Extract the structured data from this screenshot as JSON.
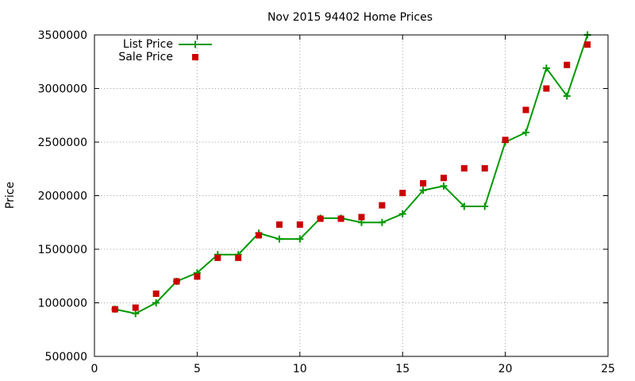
{
  "chart_data": {
    "type": "line",
    "title": "Nov 2015 94402 Home Prices",
    "xlabel": "",
    "ylabel": "Price",
    "xlim": [
      0,
      25
    ],
    "ylim": [
      500000,
      3500000
    ],
    "x_ticks": [
      0,
      5,
      10,
      15,
      20,
      25
    ],
    "y_ticks": [
      500000,
      1000000,
      1500000,
      2000000,
      2500000,
      3000000,
      3500000
    ],
    "grid": true,
    "legend_position": "top-left",
    "series": [
      {
        "name": "List Price",
        "style": "line+cross",
        "color": "#009900",
        "x": [
          1,
          2,
          3,
          4,
          5,
          6,
          7,
          8,
          9,
          10,
          11,
          12,
          13,
          14,
          15,
          16,
          17,
          18,
          19,
          20,
          21,
          22,
          23,
          24
        ],
        "values": [
          940000,
          900000,
          1000000,
          1200000,
          1280000,
          1450000,
          1450000,
          1650000,
          1595000,
          1595000,
          1790000,
          1790000,
          1750000,
          1750000,
          1830000,
          2050000,
          2090000,
          1900000,
          1900000,
          2500000,
          2590000,
          3190000,
          2930000,
          3500000
        ]
      },
      {
        "name": "Sale Price",
        "style": "square",
        "color": "#cc0000",
        "x": [
          1,
          2,
          3,
          4,
          5,
          6,
          7,
          8,
          9,
          10,
          11,
          12,
          13,
          14,
          15,
          16,
          17,
          18,
          19,
          20,
          21,
          22,
          23,
          24
        ],
        "values": [
          940000,
          955000,
          1085000,
          1200000,
          1245000,
          1420000,
          1420000,
          1630000,
          1730000,
          1730000,
          1785000,
          1785000,
          1800000,
          1910000,
          2025000,
          2115000,
          2165000,
          2255000,
          2255000,
          2520000,
          2800000,
          3000000,
          3220000,
          3410000
        ]
      }
    ]
  }
}
